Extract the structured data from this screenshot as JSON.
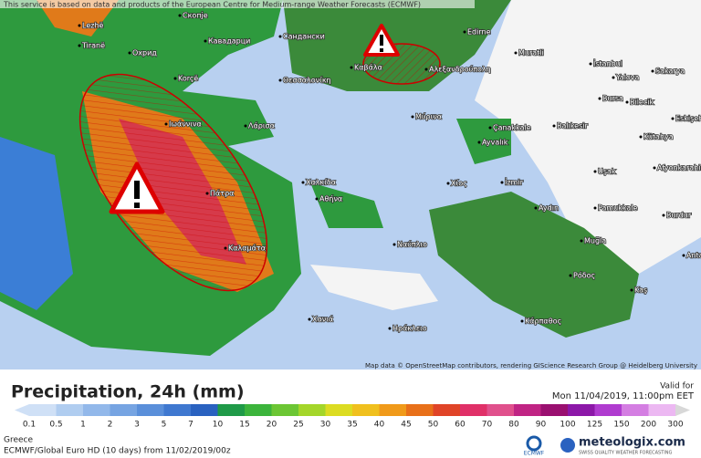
{
  "header": {
    "notice": "This service is based on data and products of the European Centre for Medium-range Weather Forecasts (ECMWF)"
  },
  "map": {
    "place_labels": [
      "Скопје",
      "Lezhë",
      "Tiranë",
      "Охрид",
      "Korçë",
      "Кавадарци",
      "Сандански",
      "Θεσσαλονίκη",
      "Καβάλα",
      "Αλεξανδρούπολη",
      "Edirne",
      "Muratli",
      "İstanbul",
      "Yalova",
      "Sakarya",
      "Bursa",
      "Bilecik",
      "Eskişehir",
      "Balıkesir",
      "Çanakkale",
      "Μύρινα",
      "Λάρισα",
      "Ιωάννινα",
      "Ayvalık",
      "Kütahya",
      "Uşak",
      "Afyonkarahisar",
      "Χαλκίδα",
      "Αθήνα",
      "Πάτρα",
      "Χίος",
      "İzmir",
      "Aydın",
      "Pamukkale",
      "Burdur",
      "Καλαμάτα",
      "Ναύπλιο",
      "Muğla",
      "Ρόδος",
      "Antalya",
      "Kaş",
      "Χανιά",
      "Ηράκλειο",
      "Κάρπαθος"
    ],
    "attribution": "Map data © OpenStreetMap contributors, rendering GIScience Research Group @ Heidelberg University"
  },
  "footer": {
    "title": "Precipitation, 24h (mm)",
    "valid_label": "Valid for",
    "valid_time": "Mon 11/04/2019, 11:00pm EET",
    "region": "Greece",
    "model": "ECMWF/Global Euro HD (10 days) from 11/02/2019/00z",
    "ecmwf": "ECMWF",
    "brand": "meteologix.com",
    "brand_tagline": "SWISS QUALITY WEATHER FORECASTING"
  },
  "legend": {
    "labels": [
      "0.1",
      "0.5",
      "1",
      "2",
      "3",
      "5",
      "7",
      "10",
      "15",
      "20",
      "25",
      "30",
      "35",
      "40",
      "45",
      "50",
      "60",
      "70",
      "80",
      "90",
      "100",
      "125",
      "150",
      "200",
      "300"
    ],
    "colors": [
      "#cfe0f6",
      "#b0cdf0",
      "#92b8ea",
      "#76a4e2",
      "#5a8fda",
      "#3f78d0",
      "#2a62c0",
      "#1f9a48",
      "#3cb43c",
      "#6cc634",
      "#a4d62a",
      "#dcdc22",
      "#f0c01e",
      "#f09a1a",
      "#e8701a",
      "#e04428",
      "#e03068",
      "#e0508c",
      "#c02484",
      "#9a1070",
      "#8c18a8",
      "#b03cd0",
      "#d47ee2",
      "#ecb8f2"
    ]
  }
}
